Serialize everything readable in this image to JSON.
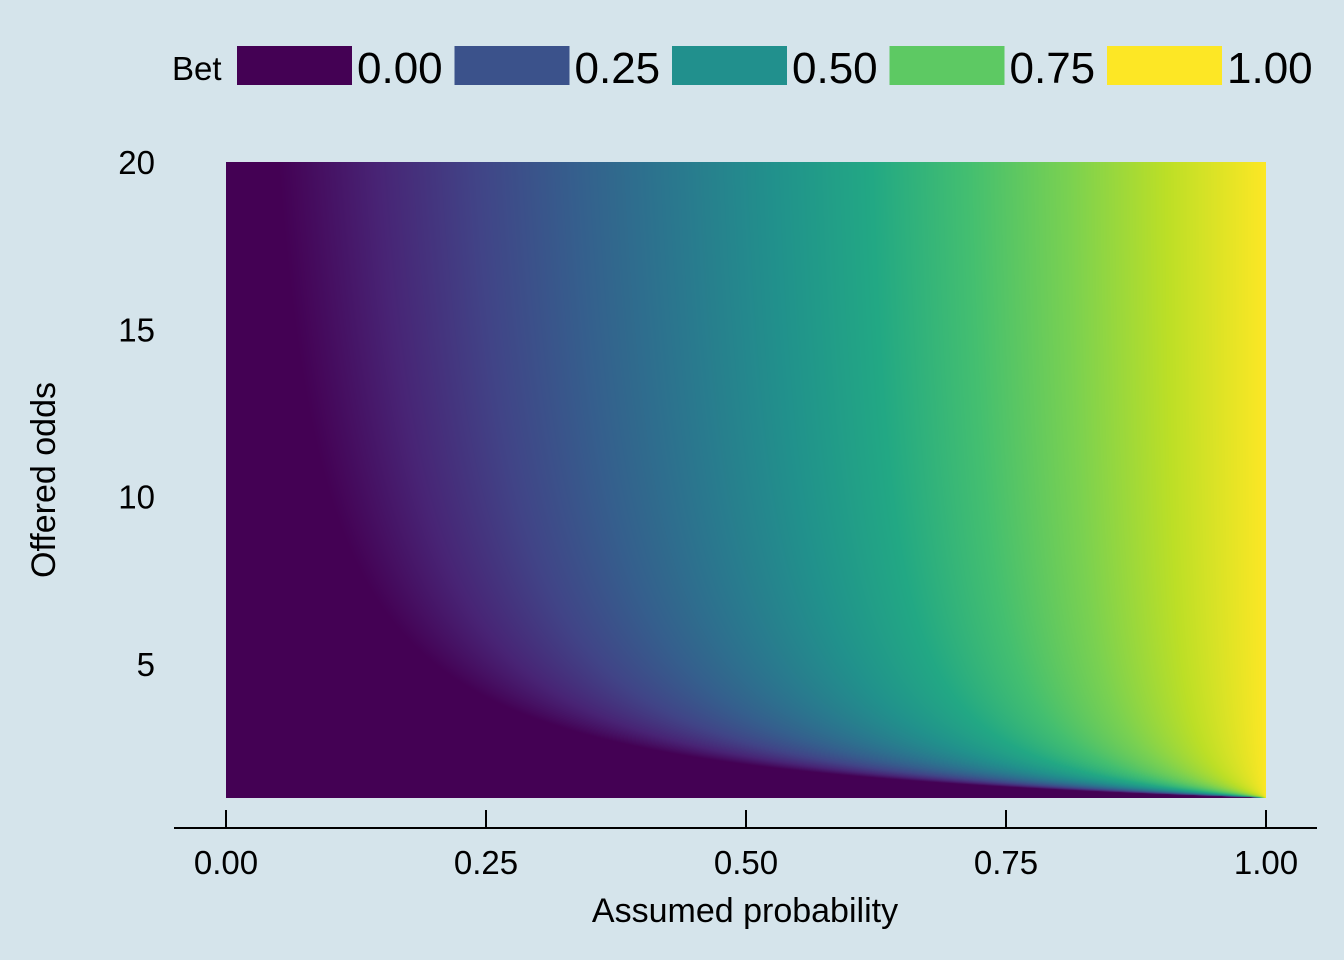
{
  "chart_data": {
    "type": "heatmap",
    "title": "",
    "xlabel": "Assumed probability",
    "ylabel": "Offered odds",
    "xlim": [
      0,
      1
    ],
    "ylim": [
      1,
      20
    ],
    "x_ticks": [
      "0.00",
      "0.25",
      "0.50",
      "0.75",
      "1.00"
    ],
    "x_tick_values": [
      0,
      0.25,
      0.5,
      0.75,
      1
    ],
    "y_ticks": [
      "5",
      "10",
      "15",
      "20"
    ],
    "y_tick_values": [
      5,
      10,
      15,
      20
    ],
    "value_formula": "Bet = max(0, (p*b - 1) / (b - 1)) where p = assumed probability, b = offered odds",
    "colormap": "viridis",
    "grid": false,
    "legend": {
      "title": "Bet",
      "placement": "top",
      "entries": [
        {
          "label": "0.00",
          "value": 0,
          "color": "#440154"
        },
        {
          "label": "0.25",
          "value": 0.25,
          "color": "#3b528b"
        },
        {
          "label": "0.50",
          "value": 0.5,
          "color": "#21908d"
        },
        {
          "label": "0.75",
          "value": 0.75,
          "color": "#5dc963"
        },
        {
          "label": "1.00",
          "value": 1,
          "color": "#fde725"
        }
      ]
    }
  },
  "colors": {
    "background": "#d5e4eb"
  }
}
